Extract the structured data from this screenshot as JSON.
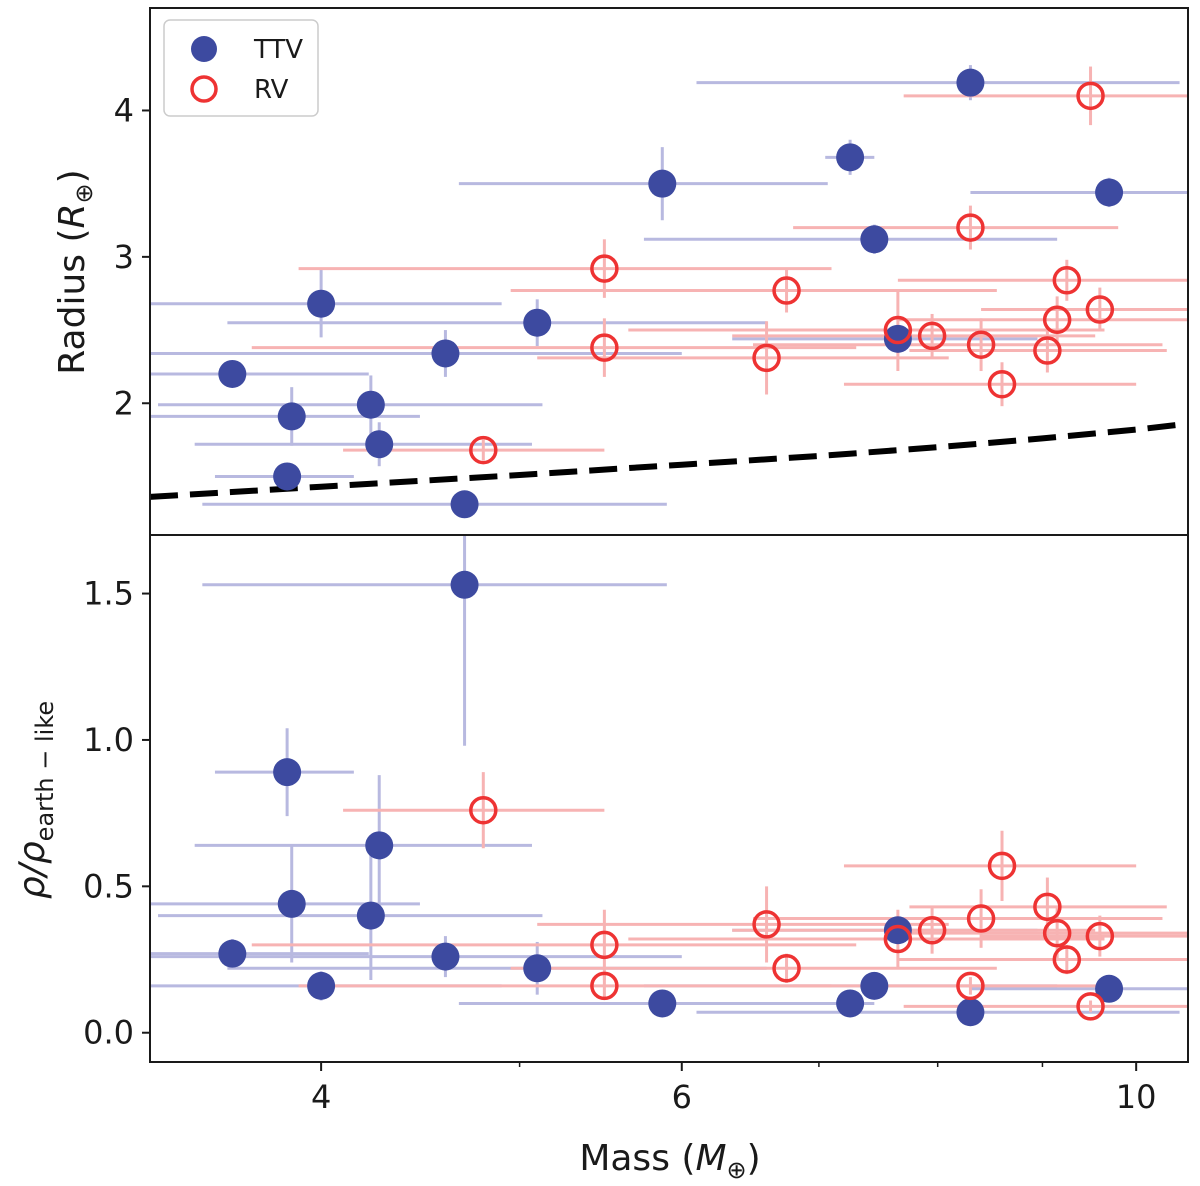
{
  "colors": {
    "ttv": "#3d4aa0",
    "ttv_err": "#b8b9e0",
    "rv": "#ee3333",
    "rv_err": "#f7b3b3",
    "axis": "#1a1a1a",
    "model_line": "#000000"
  },
  "chart_data": [
    {
      "type": "scatter",
      "panel": "top",
      "title": "",
      "xlabel": "",
      "ylabel_text": "Radius",
      "ylabel_unit_symbol": "R",
      "ylabel_unit_sub": "⊕",
      "xscale": "log",
      "xlim": [
        3.3,
        10.6
      ],
      "ylim": [
        1.1,
        4.7
      ],
      "yticks": [
        2,
        3,
        4
      ],
      "ytick_labels": [
        "2",
        "3",
        "4"
      ],
      "legend": {
        "placement": "top-left",
        "entries": [
          {
            "key": "ttv",
            "label": "TTV",
            "marker": "filled-circle"
          },
          {
            "key": "rv",
            "label": "RV",
            "marker": "open-circle"
          }
        ]
      },
      "model_curve": {
        "name": "earth-like composition",
        "style": "dashed",
        "x": [
          3.3,
          4.0,
          5.0,
          6.0,
          7.0,
          8.0,
          9.0,
          10.0,
          10.6
        ],
        "y": [
          1.36,
          1.43,
          1.51,
          1.58,
          1.64,
          1.7,
          1.76,
          1.82,
          1.86
        ]
      },
      "series": [
        {
          "name": "TTV",
          "key": "ttv",
          "points": [
            {
              "x": 3.62,
              "y": 2.2,
              "xerr": 0.6,
              "yerr": 0.06
            },
            {
              "x": 3.85,
              "y": 1.5,
              "xerr": 0.3,
              "yerr": 0.05
            },
            {
              "x": 3.87,
              "y": 1.91,
              "xerr": 0.6,
              "yerr": 0.2
            },
            {
              "x": 4.0,
              "y": 2.68,
              "xerr": 0.9,
              "yerr": 0.23
            },
            {
              "x": 4.23,
              "y": 1.99,
              "xerr": 0.9,
              "yerr": 0.2
            },
            {
              "x": 4.27,
              "y": 1.72,
              "xerr": 0.8,
              "yerr": 0.15
            },
            {
              "x": 4.6,
              "y": 2.34,
              "xerr": 1.4,
              "yerr": 0.16
            },
            {
              "x": 4.7,
              "y": 1.31,
              "xerr": 1.2,
              "yerr": 0.06
            },
            {
              "x": 5.1,
              "y": 2.55,
              "xerr": 1.5,
              "yerr": 0.16
            },
            {
              "x": 5.87,
              "y": 3.5,
              "xerr": 1.2,
              "yerr": 0.25
            },
            {
              "x": 7.25,
              "y": 3.68,
              "xerr": 0.2,
              "yerr": 0.12
            },
            {
              "x": 7.45,
              "y": 3.12,
              "xerr": 1.7,
              "yerr": 0.1
            },
            {
              "x": 7.65,
              "y": 2.44,
              "xerr": 1.3,
              "yerr": 0.1
            },
            {
              "x": 8.3,
              "y": 4.19,
              "xerr": 2.2,
              "yerr": 0.12
            },
            {
              "x": 9.7,
              "y": 3.44,
              "xerr": 1.4,
              "yerr": 0.1
            }
          ]
        },
        {
          "name": "RV",
          "key": "rv",
          "points": [
            {
              "x": 4.8,
              "y": 1.68,
              "xerr": 0.7,
              "yerr": 0.07
            },
            {
              "x": 5.5,
              "y": 2.92,
              "xerr": 1.6,
              "yerr": 0.2
            },
            {
              "x": 5.5,
              "y": 2.38,
              "xerr": 1.8,
              "yerr": 0.2
            },
            {
              "x": 6.6,
              "y": 2.31,
              "xerr": 1.5,
              "yerr": 0.25
            },
            {
              "x": 6.75,
              "y": 2.77,
              "xerr": 1.8,
              "yerr": 0.15
            },
            {
              "x": 7.65,
              "y": 2.5,
              "xerr": 2.0,
              "yerr": 0.28
            },
            {
              "x": 7.95,
              "y": 2.46,
              "xerr": 1.6,
              "yerr": 0.15
            },
            {
              "x": 8.3,
              "y": 3.2,
              "xerr": 1.5,
              "yerr": 0.15
            },
            {
              "x": 8.4,
              "y": 2.4,
              "xerr": 1.9,
              "yerr": 0.18
            },
            {
              "x": 8.6,
              "y": 2.13,
              "xerr": 1.4,
              "yerr": 0.15
            },
            {
              "x": 9.05,
              "y": 2.36,
              "xerr": 1.3,
              "yerr": 0.15
            },
            {
              "x": 9.15,
              "y": 2.57,
              "xerr": 1.5,
              "yerr": 0.16
            },
            {
              "x": 9.25,
              "y": 2.84,
              "xerr": 1.6,
              "yerr": 0.14
            },
            {
              "x": 9.5,
              "y": 4.1,
              "xerr": 1.8,
              "yerr": 0.2
            },
            {
              "x": 9.6,
              "y": 2.64,
              "xerr": 1.2,
              "yerr": 0.15
            }
          ]
        }
      ]
    },
    {
      "type": "scatter",
      "panel": "bottom",
      "title": "",
      "xlabel_text": "Mass",
      "xlabel_unit_symbol": "M",
      "xlabel_unit_sub": "⊕",
      "ylabel_rho": "ρ/ρ",
      "ylabel_sub": "earth − like",
      "xscale": "log",
      "xlim": [
        3.3,
        10.6
      ],
      "ylim": [
        -0.1,
        1.7
      ],
      "xticks": [
        4,
        6,
        10
      ],
      "xtick_labels": [
        "4",
        "6",
        "10"
      ],
      "xticks_minor": [
        5,
        7,
        8,
        9
      ],
      "yticks": [
        0.0,
        0.5,
        1.0,
        1.5
      ],
      "ytick_labels": [
        "0.0",
        "0.5",
        "1.0",
        "1.5"
      ],
      "series": [
        {
          "name": "TTV",
          "key": "ttv",
          "points": [
            {
              "x": 3.62,
              "y": 0.27,
              "xerr": 0.6,
              "yerr": 0.05
            },
            {
              "x": 3.85,
              "y": 0.89,
              "xerr": 0.3,
              "yerr": 0.15
            },
            {
              "x": 3.87,
              "y": 0.44,
              "xerr": 0.6,
              "yerr": 0.2
            },
            {
              "x": 4.0,
              "y": 0.16,
              "xerr": 0.9,
              "yerr": 0.05
            },
            {
              "x": 4.23,
              "y": 0.4,
              "xerr": 0.9,
              "yerr": 0.22
            },
            {
              "x": 4.27,
              "y": 0.64,
              "xerr": 0.8,
              "yerr": 0.24
            },
            {
              "x": 4.6,
              "y": 0.26,
              "xerr": 1.4,
              "yerr": 0.07
            },
            {
              "x": 4.7,
              "y": 1.53,
              "xerr": 1.2,
              "yerr": 0.55
            },
            {
              "x": 5.1,
              "y": 0.22,
              "xerr": 1.5,
              "yerr": 0.09
            },
            {
              "x": 5.87,
              "y": 0.1,
              "xerr": 1.2,
              "yerr": 0.02
            },
            {
              "x": 7.25,
              "y": 0.1,
              "xerr": 0.2,
              "yerr": 0.02
            },
            {
              "x": 7.45,
              "y": 0.16,
              "xerr": 1.7,
              "yerr": 0.02
            },
            {
              "x": 7.65,
              "y": 0.35,
              "xerr": 1.3,
              "yerr": 0.04
            },
            {
              "x": 8.3,
              "y": 0.07,
              "xerr": 2.2,
              "yerr": 0.02
            },
            {
              "x": 9.7,
              "y": 0.15,
              "xerr": 1.4,
              "yerr": 0.02
            }
          ]
        },
        {
          "name": "RV",
          "key": "rv",
          "points": [
            {
              "x": 4.8,
              "y": 0.76,
              "xerr": 0.7,
              "yerr": 0.13
            },
            {
              "x": 5.5,
              "y": 0.16,
              "xerr": 1.6,
              "yerr": 0.04
            },
            {
              "x": 5.5,
              "y": 0.3,
              "xerr": 1.8,
              "yerr": 0.12
            },
            {
              "x": 6.6,
              "y": 0.37,
              "xerr": 1.5,
              "yerr": 0.13
            },
            {
              "x": 6.75,
              "y": 0.22,
              "xerr": 1.8,
              "yerr": 0.05
            },
            {
              "x": 7.65,
              "y": 0.32,
              "xerr": 2.0,
              "yerr": 0.1
            },
            {
              "x": 7.95,
              "y": 0.35,
              "xerr": 1.6,
              "yerr": 0.08
            },
            {
              "x": 8.3,
              "y": 0.16,
              "xerr": 1.5,
              "yerr": 0.03
            },
            {
              "x": 8.4,
              "y": 0.39,
              "xerr": 1.9,
              "yerr": 0.1
            },
            {
              "x": 8.6,
              "y": 0.57,
              "xerr": 1.4,
              "yerr": 0.12
            },
            {
              "x": 9.05,
              "y": 0.43,
              "xerr": 1.3,
              "yerr": 0.1
            },
            {
              "x": 9.15,
              "y": 0.34,
              "xerr": 1.5,
              "yerr": 0.09
            },
            {
              "x": 9.25,
              "y": 0.25,
              "xerr": 1.6,
              "yerr": 0.05
            },
            {
              "x": 9.5,
              "y": 0.09,
              "xerr": 1.8,
              "yerr": 0.02
            },
            {
              "x": 9.6,
              "y": 0.33,
              "xerr": 1.2,
              "yerr": 0.07
            }
          ]
        }
      ]
    }
  ]
}
